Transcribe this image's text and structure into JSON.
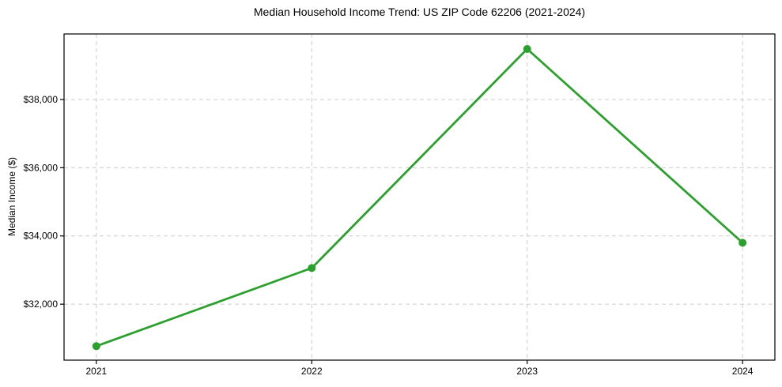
{
  "figure": {
    "background": "#ffffff"
  },
  "chart_data": {
    "type": "line",
    "title": "Median Household Income Trend: US ZIP Code 62206 (2021-2024)",
    "xlabel": "",
    "ylabel": "Median Income ($)",
    "x": [
      2021,
      2022,
      2023,
      2024
    ],
    "series": [
      {
        "name": "Median Household Income",
        "color": "#2ca02c",
        "values": [
          30770,
          33060,
          39480,
          33800
        ]
      }
    ],
    "xtick_labels": [
      "2021",
      "2022",
      "2023",
      "2024"
    ],
    "yticks": [
      32000,
      34000,
      36000,
      38000
    ],
    "ytick_labels": [
      "$32,000",
      "$34,000",
      "$36,000",
      "$38,000"
    ],
    "xlim": [
      2020.85,
      2024.15
    ],
    "ylim": [
      30360,
      39920
    ],
    "grid": {
      "enabled": true,
      "axes": "both",
      "style": "dashed",
      "color": "#cbcbcb"
    },
    "legend": {
      "visible": false
    },
    "styles": {
      "line_width": 2.8,
      "marker": "circle",
      "marker_radius": 5,
      "spine_color": "#000000",
      "text_color": "#000000",
      "background": "#ffffff"
    }
  }
}
